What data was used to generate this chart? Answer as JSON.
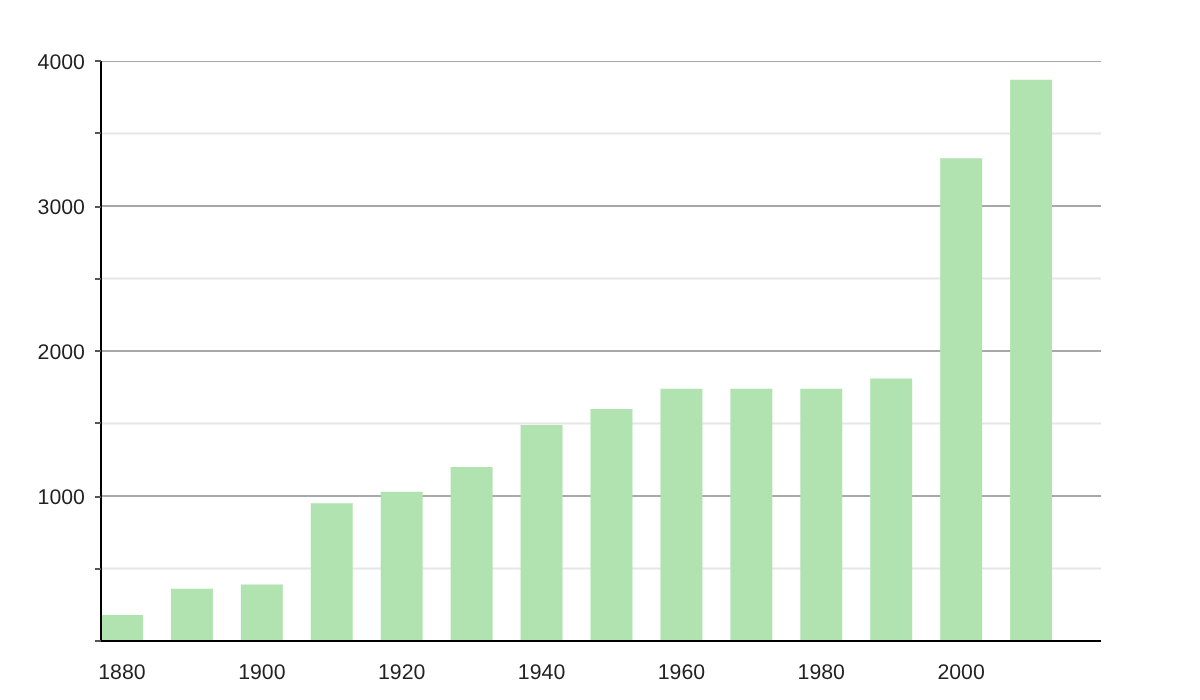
{
  "chart_data": {
    "type": "bar",
    "x": [
      1880,
      1890,
      1900,
      1910,
      1920,
      1930,
      1940,
      1950,
      1960,
      1970,
      1980,
      1990,
      2000,
      2010
    ],
    "series": [
      {
        "color": "#b1e3b0",
        "values": [
          180,
          360,
          390,
          950,
          1030,
          1200,
          1490,
          1600,
          1740,
          1740,
          1740,
          1810,
          3330,
          3870
        ]
      }
    ],
    "xlim": [
      1877,
      2020
    ],
    "xticks": [
      1880,
      1900,
      1920,
      1940,
      1960,
      1980,
      2000
    ],
    "ylim": [
      0,
      4000
    ],
    "yticks": [
      {
        "value": 0,
        "label": null
      },
      {
        "value": 500,
        "label": null
      },
      1000,
      {
        "value": 1500,
        "label": null
      },
      2000,
      {
        "value": 2500,
        "label": null
      },
      3000,
      {
        "value": 3500,
        "label": null
      },
      4000
    ],
    "grid": "y"
  }
}
